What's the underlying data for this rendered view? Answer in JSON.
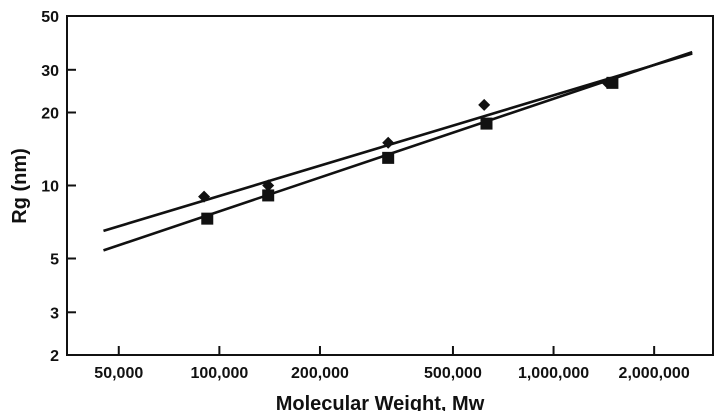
{
  "chart_data": {
    "type": "scatter",
    "title": "",
    "xlabel": "Molecular Weight, Mw",
    "ylabel": "Rg (nm)",
    "x_scale": "log",
    "y_scale": "log",
    "xlim": [
      35000,
      3000000
    ],
    "ylim": [
      2,
      50
    ],
    "x_ticks": [
      {
        "value": 50000,
        "label": "50,000"
      },
      {
        "value": 100000,
        "label": "100,000"
      },
      {
        "value": 200000,
        "label": "200,000"
      },
      {
        "value": 500000,
        "label": "500,000"
      },
      {
        "value": 1000000,
        "label": "1,000,000"
      },
      {
        "value": 2000000,
        "label": "2,000,000"
      }
    ],
    "y_ticks": [
      {
        "value": 2,
        "label": "2"
      },
      {
        "value": 3,
        "label": "3"
      },
      {
        "value": 5,
        "label": "5"
      },
      {
        "value": 10,
        "label": "10"
      },
      {
        "value": 20,
        "label": "20"
      },
      {
        "value": 30,
        "label": "30"
      },
      {
        "value": 50,
        "label": "50"
      }
    ],
    "grid": false,
    "series": [
      {
        "marker": "diamond",
        "x": [
          90000,
          140000,
          320000,
          620000,
          1450000
        ],
        "y": [
          9.0,
          10.0,
          15.0,
          21.5,
          26.5
        ],
        "fit_line": {
          "x": [
            45000,
            2600000
          ],
          "y": [
            6.5,
            35.0
          ]
        }
      },
      {
        "marker": "square",
        "x": [
          92000,
          140000,
          320000,
          630000,
          1500000
        ],
        "y": [
          7.3,
          9.1,
          13.0,
          18.0,
          26.5
        ],
        "fit_line": {
          "x": [
            45000,
            2600000
          ],
          "y": [
            5.4,
            35.5
          ]
        }
      }
    ]
  }
}
